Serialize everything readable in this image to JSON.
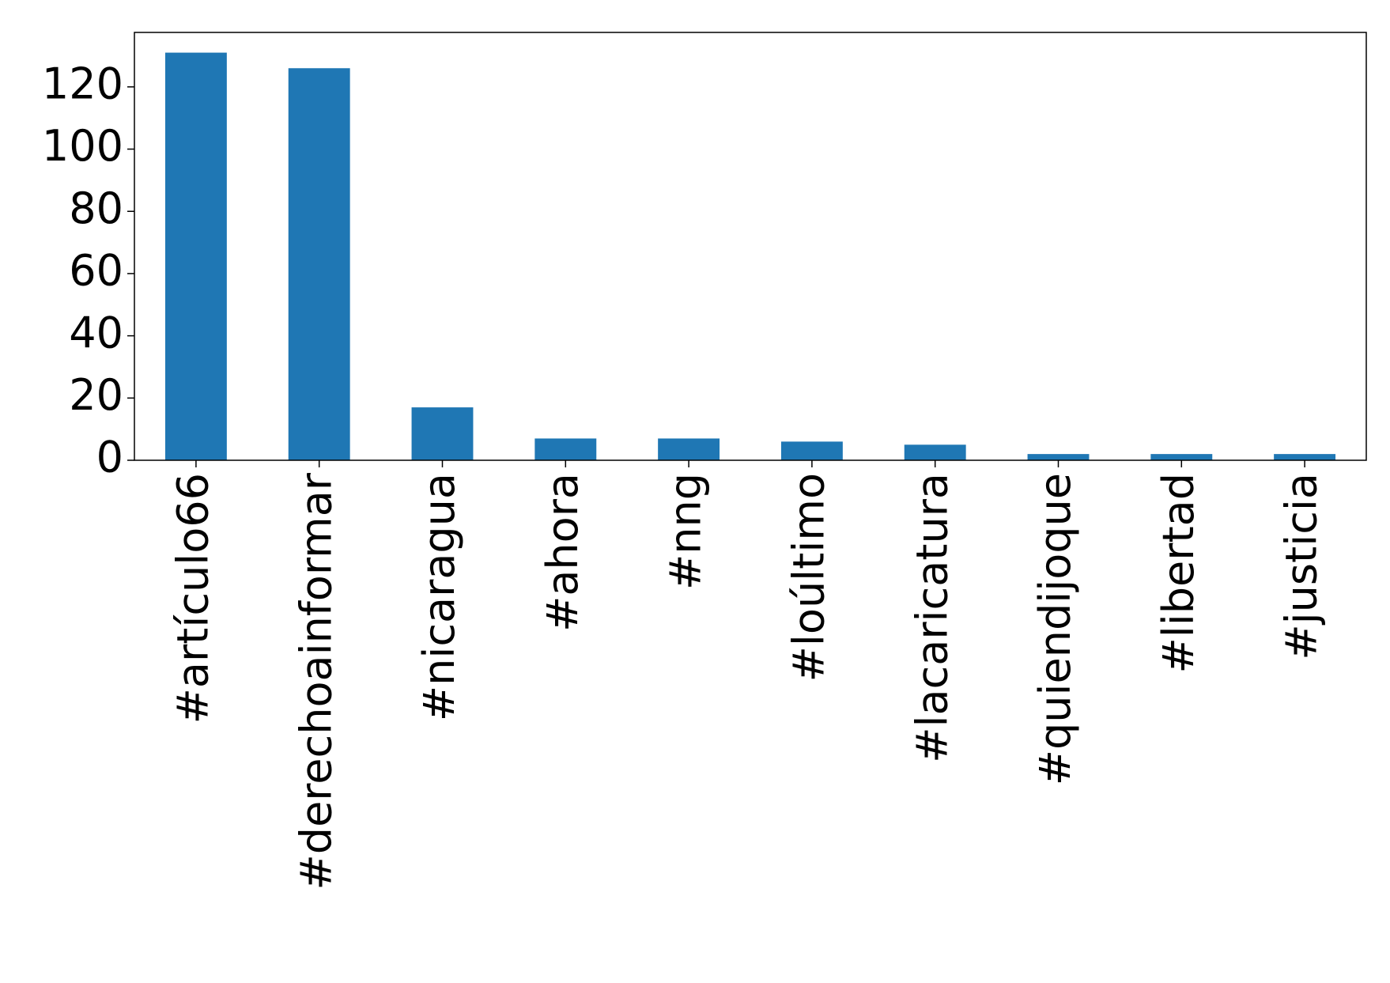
{
  "chart_data": {
    "type": "bar",
    "categories": [
      "#artículo66",
      "#derechoainformar",
      "#nicaragua",
      "#ahora",
      "#nng",
      "#loúltimo",
      "#lacaricatura",
      "#quiendijoque",
      "#libertad",
      "#justicia"
    ],
    "values": [
      131,
      126,
      17,
      7,
      7,
      6,
      5,
      2,
      2,
      2
    ],
    "color": "#1f77b4",
    "ylim": [
      0,
      137.5
    ],
    "yticks": [
      0,
      20,
      40,
      60,
      80,
      100,
      120
    ],
    "grid": false
  }
}
